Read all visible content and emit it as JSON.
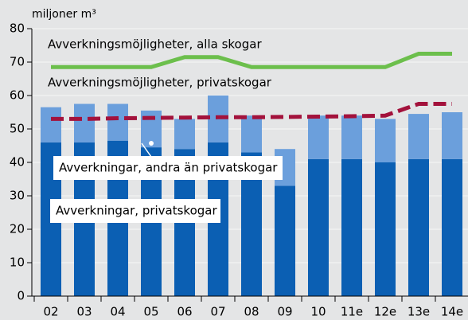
{
  "chart_data": {
    "type": "bar",
    "stacked": true,
    "y_label": "miljoner m³",
    "categories": [
      "02",
      "03",
      "04",
      "05",
      "06",
      "07",
      "08",
      "09",
      "10",
      "11e",
      "12e",
      "13e",
      "14e"
    ],
    "series": [
      {
        "name": "Avverkningar, privatskogar",
        "kind": "bar",
        "color": "#0b5fb3",
        "values": [
          46,
          46,
          46.5,
          44.5,
          44,
          46,
          43,
          33,
          41,
          41,
          40,
          41,
          41
        ]
      },
      {
        "name": "Avverkningar, andra än privatskogar",
        "kind": "bar",
        "color": "#6b9fdc",
        "values": [
          10.5,
          11.5,
          11,
          11,
          9,
          14,
          11,
          11,
          13,
          13,
          13,
          13.5,
          14
        ]
      },
      {
        "name": "Avverkningsmöjligheter, alla skogar",
        "kind": "line",
        "color": "#6cbf4c",
        "dashed": false,
        "values": [
          68.5,
          68.5,
          68.5,
          68.5,
          71.5,
          71.5,
          68.5,
          68.5,
          68.5,
          68.5,
          68.5,
          72.5,
          72.5
        ]
      },
      {
        "name": "Avverkningsmöjligheter, privatskogar",
        "kind": "line",
        "color": "#a3123c",
        "dashed": true,
        "values": [
          53,
          53,
          53.2,
          53.3,
          53.4,
          53.5,
          53.5,
          53.6,
          53.7,
          53.8,
          54,
          57.5,
          57.5
        ]
      }
    ],
    "ylim": [
      0,
      80
    ],
    "yticks": [
      0,
      10,
      20,
      30,
      40,
      50,
      60,
      70,
      80
    ],
    "grid": true
  }
}
